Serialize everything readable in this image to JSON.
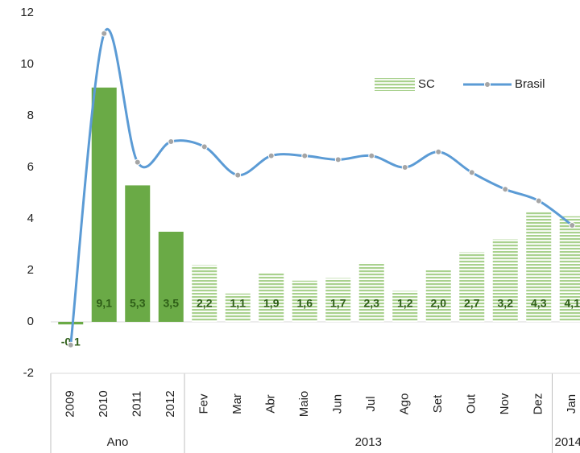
{
  "chart_data": {
    "type": "bar+line",
    "groups": [
      {
        "name": "Ano",
        "categories": [
          "2009",
          "2010",
          "2011",
          "2012"
        ]
      },
      {
        "name": "2013",
        "categories": [
          "Fev",
          "Mar",
          "Abr",
          "Maio",
          "Jun",
          "Jul",
          "Ago",
          "Set",
          "Out",
          "Nov",
          "Dez"
        ]
      },
      {
        "name": "2014",
        "categories": [
          "Jan"
        ]
      }
    ],
    "series": [
      {
        "name": "SC",
        "type": "bar",
        "color": "#6aaa46",
        "stripe_color": "#a9d18e",
        "values": [
          -0.1,
          9.1,
          5.3,
          3.5,
          2.2,
          1.1,
          1.9,
          1.6,
          1.7,
          2.3,
          1.2,
          2.0,
          2.7,
          3.2,
          4.3,
          4.1
        ],
        "value_labels": [
          "-0,1",
          "9,1",
          "5,3",
          "3,5",
          "2,2",
          "1,1",
          "1,9",
          "1,6",
          "1,7",
          "2,3",
          "1,2",
          "2,0",
          "2,7",
          "3,2",
          "4,3",
          "4,1"
        ]
      },
      {
        "name": "Brasil",
        "type": "line",
        "color": "#5b9bd5",
        "marker_color": "#a5a5a5",
        "values": [
          -0.9,
          11.2,
          6.2,
          7.0,
          6.8,
          5.7,
          6.45,
          6.45,
          6.3,
          6.45,
          6.0,
          6.6,
          5.8,
          5.15,
          4.7,
          3.75
        ]
      }
    ],
    "ylim": [
      -2,
      12
    ],
    "yticks": [
      -2,
      0,
      2,
      4,
      6,
      8,
      10,
      12
    ],
    "grid": false
  }
}
